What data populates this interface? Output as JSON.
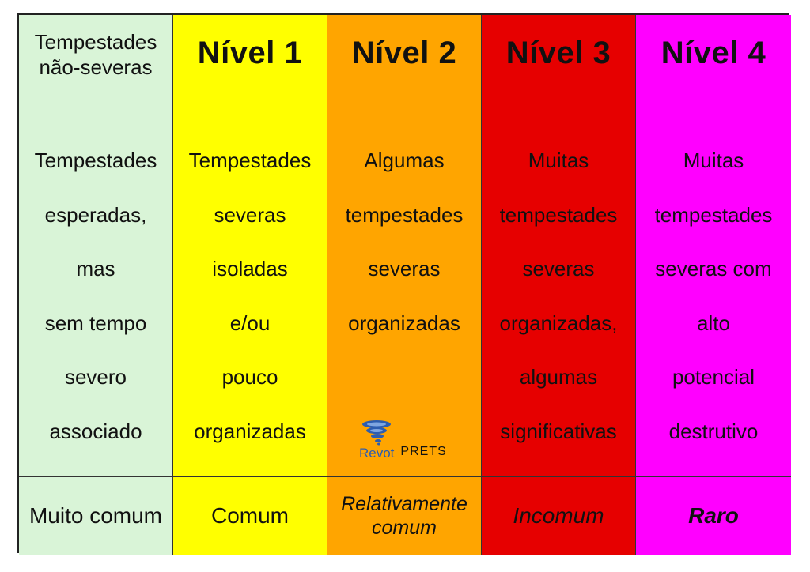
{
  "header": {
    "col0": [
      "Tempestades",
      "não-severas"
    ],
    "levels": [
      "Nível 1",
      "Nível 2",
      "Nível 3",
      "Nível 4"
    ]
  },
  "descriptions": {
    "col0": [
      "Tempestades",
      "esperadas,",
      "mas",
      "sem tempo",
      "severo",
      "associado"
    ],
    "col1": [
      "Tempestades",
      "severas",
      "isoladas",
      "e/ou",
      "pouco",
      "organizadas"
    ],
    "col2": [
      "Algumas",
      "tempestades",
      "severas",
      "organizadas"
    ],
    "col3": [
      "Muitas",
      "tempestades",
      "severas",
      "organizadas,",
      "algumas",
      "significativas"
    ],
    "col4": [
      "Muitas",
      "tempestades",
      "severas com",
      "alto",
      "potencial",
      "destrutivo"
    ]
  },
  "frequency": {
    "col0": "Muito comum",
    "col1": "Comum",
    "col2": [
      "Relativamente",
      "comum"
    ],
    "col3": "Incomum",
    "col4": "Raro"
  },
  "logos": {
    "revot": "Revot",
    "prets": "PRETS"
  },
  "colors": {
    "col0": "#d9f4d7",
    "col1": "#ffff00",
    "col2": "#ffa500",
    "col3": "#e60000",
    "col4": "#ff00ff"
  }
}
